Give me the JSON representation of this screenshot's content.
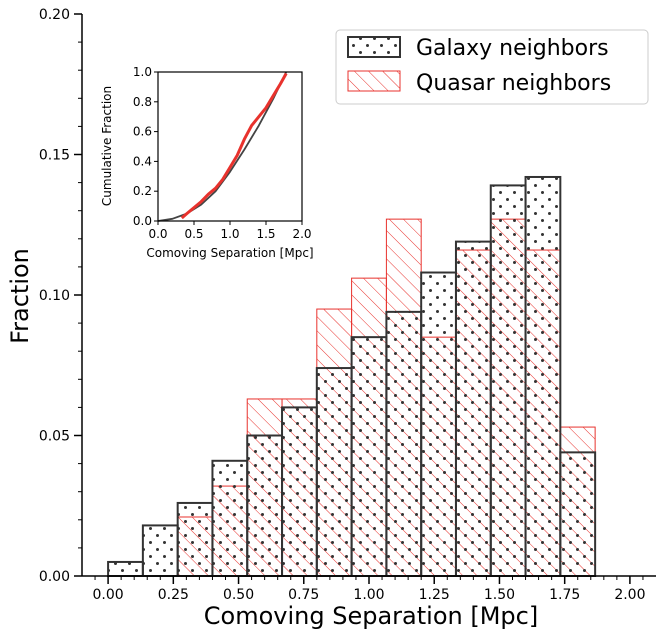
{
  "chart_data": {
    "type": "bar",
    "main": {
      "xlabel": "Comoving Separation [Mpc]",
      "ylabel": "Fraction",
      "xlim": [
        -0.1,
        2.1
      ],
      "ylim": [
        0.0,
        0.2
      ],
      "xticks": [
        0.0,
        0.25,
        0.5,
        0.75,
        1.0,
        1.25,
        1.5,
        1.75,
        2.0
      ],
      "xtick_labels": [
        "0.00",
        "0.25",
        "0.50",
        "0.75",
        "1.00",
        "1.25",
        "1.50",
        "1.75",
        "2.00"
      ],
      "yticks": [
        0.0,
        0.05,
        0.1,
        0.15,
        0.2
      ],
      "ytick_labels": [
        "0.00",
        "0.05",
        "0.10",
        "0.15",
        "0.20"
      ],
      "bin_edges": [
        0.0,
        0.1333,
        0.2667,
        0.4,
        0.5333,
        0.6667,
        0.8,
        0.9333,
        1.0667,
        1.2,
        1.3333,
        1.4667,
        1.6,
        1.7333,
        1.8667
      ],
      "series": [
        {
          "name": "Galaxy neighbors",
          "hatch": "dots",
          "color": "#333333",
          "values": [
            0.005,
            0.018,
            0.026,
            0.041,
            0.05,
            0.06,
            0.074,
            0.085,
            0.094,
            0.108,
            0.119,
            0.139,
            0.142,
            0.044
          ]
        },
        {
          "name": "Quasar neighbors",
          "hatch": "diagonal",
          "color": "#e8322d",
          "values": [
            0.0,
            0.0,
            0.021,
            0.032,
            0.063,
            0.063,
            0.095,
            0.106,
            0.127,
            0.085,
            0.116,
            0.127,
            0.116,
            0.053
          ]
        }
      ],
      "legend": "top-right"
    },
    "inset": {
      "type": "line",
      "xlabel": "Comoving Separation [Mpc]",
      "ylabel": "Cumulative Fraction",
      "xlim": [
        0.0,
        2.0
      ],
      "ylim": [
        0.0,
        1.0
      ],
      "xticks": [
        0.0,
        0.5,
        1.0,
        1.5,
        2.0
      ],
      "xtick_labels": [
        "0.0",
        "0.5",
        "1.0",
        "1.5",
        "2.0"
      ],
      "yticks": [
        0.0,
        0.2,
        0.4,
        0.6,
        0.8,
        1.0
      ],
      "ytick_labels": [
        "0.0",
        "0.2",
        "0.4",
        "0.6",
        "0.8",
        "1.0"
      ],
      "series": [
        {
          "name": "Galaxy neighbors (CDF)",
          "color": "#444444",
          "x": [
            0.0,
            0.2,
            0.4,
            0.6,
            0.8,
            1.0,
            1.2,
            1.4,
            1.6,
            1.78
          ],
          "y": [
            0.0,
            0.015,
            0.05,
            0.11,
            0.2,
            0.33,
            0.48,
            0.64,
            0.82,
            1.0
          ]
        },
        {
          "name": "Quasar neighbors (CDF)",
          "color": "#e8322d",
          "x": [
            0.33,
            0.4,
            0.5,
            0.6,
            0.7,
            0.8,
            0.9,
            1.0,
            1.1,
            1.2,
            1.3,
            1.4,
            1.5,
            1.6,
            1.7,
            1.78
          ],
          "y": [
            0.02,
            0.05,
            0.09,
            0.13,
            0.18,
            0.22,
            0.28,
            0.36,
            0.44,
            0.55,
            0.64,
            0.7,
            0.76,
            0.84,
            0.92,
            0.99
          ]
        }
      ]
    }
  }
}
